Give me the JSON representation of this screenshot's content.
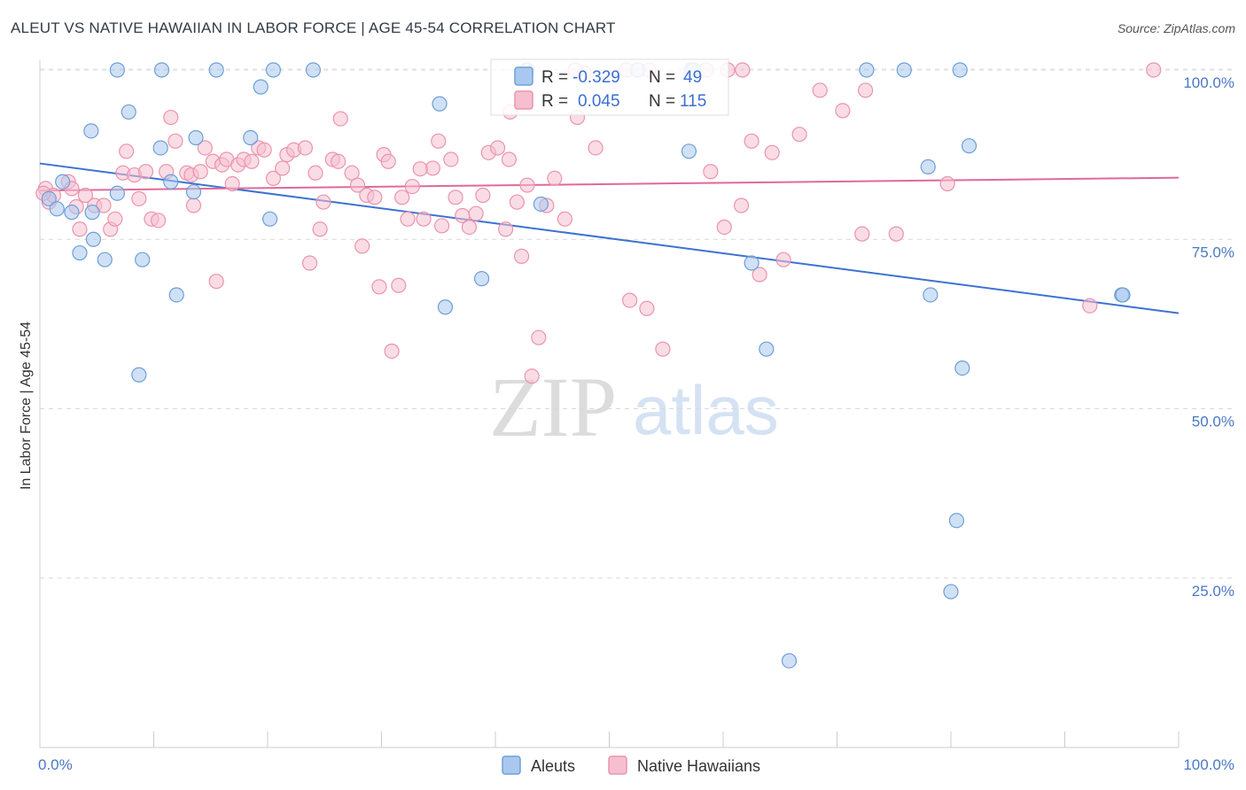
{
  "title": "ALEUT VS NATIVE HAWAIIAN IN LABOR FORCE | AGE 45-54 CORRELATION CHART",
  "source": "Source: ZipAtlas.com",
  "watermark": {
    "zip": "ZIP",
    "atlas": "atlas"
  },
  "colors": {
    "aleut_fill": "#aac8ef",
    "aleut_stroke": "#6e9fd8",
    "aleut_line": "#3d72d1",
    "hawaiian_fill": "#f6bfd0",
    "hawaiian_stroke": "#eb93af",
    "hawaiian_line": "#e0699a",
    "grid": "#d8d8d8",
    "tick_text": "#4a78c4"
  },
  "legend": {
    "row1": {
      "r_label": "R = ",
      "r_value": "-0.329",
      "n_label": "N = ",
      "n_value": "49"
    },
    "row2": {
      "r_label": "R = ",
      "r_value": "0.045",
      "n_label": "N = ",
      "n_value": "115"
    }
  },
  "bottom_legend": {
    "aleut": "Aleuts",
    "hawaiian": "Native Hawaiians"
  },
  "chart_data": {
    "type": "scatter",
    "title": "ALEUT VS NATIVE HAWAIIAN IN LABOR FORCE | AGE 45-54 CORRELATION CHART",
    "xlabel": "",
    "ylabel": "In Labor Force | Age 45-54",
    "xlim": [
      0,
      100
    ],
    "ylim": [
      0,
      103
    ],
    "x_tick_labels": [
      "0.0%",
      "100.0%"
    ],
    "y_ticks": [
      25,
      50,
      75,
      100
    ],
    "y_tick_labels": [
      "25.0%",
      "50.0%",
      "75.0%",
      "100.0%"
    ],
    "series": [
      {
        "name": "Aleuts",
        "r": -0.329,
        "n": 49,
        "trend": {
          "x": [
            0,
            100
          ],
          "y": [
            86.2,
            64.1
          ]
        },
        "points": [
          [
            0.8,
            81
          ],
          [
            1.5,
            79.5
          ],
          [
            2,
            83.5
          ],
          [
            2.8,
            79
          ],
          [
            4.6,
            79
          ],
          [
            4.7,
            75
          ],
          [
            3.5,
            73
          ],
          [
            5.7,
            72
          ],
          [
            9,
            72
          ],
          [
            8.7,
            55
          ],
          [
            4.5,
            91
          ],
          [
            7.8,
            93.8
          ],
          [
            6.8,
            81.8
          ],
          [
            10.6,
            88.5
          ],
          [
            11.5,
            83.5
          ],
          [
            12,
            66.8
          ],
          [
            13.5,
            82
          ],
          [
            13.7,
            90
          ],
          [
            18.5,
            90
          ],
          [
            20.2,
            78
          ],
          [
            6.8,
            100
          ],
          [
            10.7,
            100
          ],
          [
            15.5,
            100
          ],
          [
            20.5,
            100
          ],
          [
            24,
            100
          ],
          [
            19.4,
            97.5
          ],
          [
            35.1,
            95
          ],
          [
            35.6,
            65
          ],
          [
            38.8,
            69.2
          ],
          [
            44,
            80.2
          ],
          [
            42.8,
            100
          ],
          [
            57.2,
            100
          ],
          [
            52.5,
            100
          ],
          [
            57,
            88
          ],
          [
            57.4,
            100
          ],
          [
            63.8,
            58.8
          ],
          [
            78,
            85.7
          ],
          [
            78.2,
            66.8
          ],
          [
            80.5,
            33.5
          ],
          [
            81.6,
            88.8
          ],
          [
            81,
            56
          ],
          [
            80,
            23
          ],
          [
            65.8,
            12.8
          ],
          [
            62.5,
            71.5
          ],
          [
            80.8,
            100
          ],
          [
            72.6,
            100
          ],
          [
            75.9,
            100
          ],
          [
            95,
            66.8
          ],
          [
            95.1,
            66.8
          ]
        ]
      },
      {
        "name": "Native Hawaiians",
        "r": 0.045,
        "n": 115,
        "trend": {
          "x": [
            0,
            100
          ],
          "y": [
            82.2,
            84.1
          ]
        },
        "points": [
          [
            0.5,
            82.5
          ],
          [
            0.8,
            80.5
          ],
          [
            1.2,
            81.5
          ],
          [
            2.5,
            83.5
          ],
          [
            2.8,
            82.5
          ],
          [
            3.2,
            79.8
          ],
          [
            3.5,
            76.5
          ],
          [
            4,
            81.5
          ],
          [
            4.8,
            80
          ],
          [
            5.6,
            80
          ],
          [
            6.2,
            76.5
          ],
          [
            6.6,
            78
          ],
          [
            7.3,
            84.8
          ],
          [
            7.6,
            88
          ],
          [
            8.3,
            84.5
          ],
          [
            8.7,
            81
          ],
          [
            9.3,
            85
          ],
          [
            9.8,
            78
          ],
          [
            10.4,
            77.8
          ],
          [
            11.1,
            85
          ],
          [
            11.5,
            93
          ],
          [
            11.9,
            89.5
          ],
          [
            12.9,
            84.8
          ],
          [
            13.3,
            84.5
          ],
          [
            13.5,
            80
          ],
          [
            14.1,
            85
          ],
          [
            14.5,
            88.5
          ],
          [
            15.2,
            86.5
          ],
          [
            15.5,
            68.8
          ],
          [
            16,
            86
          ],
          [
            16.4,
            86.8
          ],
          [
            16.9,
            83.2
          ],
          [
            17.4,
            86
          ],
          [
            17.9,
            86.8
          ],
          [
            18.6,
            86.5
          ],
          [
            19.2,
            88.5
          ],
          [
            19.7,
            88.2
          ],
          [
            20.5,
            84
          ],
          [
            21.3,
            85.5
          ],
          [
            21.7,
            87.5
          ],
          [
            22.3,
            88.2
          ],
          [
            23.3,
            88.5
          ],
          [
            23.7,
            71.5
          ],
          [
            24.2,
            84.8
          ],
          [
            24.6,
            76.5
          ],
          [
            24.9,
            80.5
          ],
          [
            25.7,
            86.8
          ],
          [
            26.2,
            86.5
          ],
          [
            26.4,
            92.8
          ],
          [
            27.4,
            84.8
          ],
          [
            27.9,
            83
          ],
          [
            28.3,
            74
          ],
          [
            28.7,
            81.5
          ],
          [
            29.4,
            81.2
          ],
          [
            29.8,
            68
          ],
          [
            30.2,
            87.5
          ],
          [
            30.6,
            86.5
          ],
          [
            30.9,
            58.5
          ],
          [
            31.5,
            68.2
          ],
          [
            31.8,
            81.2
          ],
          [
            32.3,
            78
          ],
          [
            32.7,
            82.8
          ],
          [
            33.7,
            78
          ],
          [
            34.5,
            85.5
          ],
          [
            35,
            89.5
          ],
          [
            35.3,
            77
          ],
          [
            36.1,
            86.8
          ],
          [
            36.5,
            81.2
          ],
          [
            37.1,
            78.5
          ],
          [
            37.7,
            76.8
          ],
          [
            38.3,
            78.8
          ],
          [
            38.9,
            81.5
          ],
          [
            39.4,
            87.8
          ],
          [
            40.2,
            88.5
          ],
          [
            40.9,
            76.5
          ],
          [
            41.2,
            86.8
          ],
          [
            41.9,
            80.5
          ],
          [
            42.3,
            72.5
          ],
          [
            42.8,
            83
          ],
          [
            43.2,
            54.8
          ],
          [
            43.8,
            60.5
          ],
          [
            44.5,
            80
          ],
          [
            45.2,
            84
          ],
          [
            46.1,
            78
          ],
          [
            47.2,
            93
          ],
          [
            47.8,
            99.5
          ],
          [
            48.8,
            88.5
          ],
          [
            51.8,
            66
          ],
          [
            53.3,
            64.8
          ],
          [
            54.7,
            58.8
          ],
          [
            58.9,
            85
          ],
          [
            60.1,
            76.8
          ],
          [
            61.6,
            80
          ],
          [
            62.5,
            89.5
          ],
          [
            63.2,
            69.8
          ],
          [
            64.3,
            87.8
          ],
          [
            65.3,
            72
          ],
          [
            66.7,
            90.5
          ],
          [
            68.5,
            97
          ],
          [
            70.5,
            94
          ],
          [
            72.2,
            75.8
          ],
          [
            72.5,
            97
          ],
          [
            75.2,
            75.8
          ],
          [
            79.7,
            83.2
          ],
          [
            97.8,
            100
          ],
          [
            47,
            100
          ],
          [
            53.5,
            100
          ],
          [
            58.5,
            100
          ],
          [
            60.4,
            100
          ],
          [
            61.7,
            100
          ],
          [
            92.2,
            65.2
          ],
          [
            51.5,
            100
          ],
          [
            41.3,
            93.8
          ],
          [
            0.3,
            81.8
          ],
          [
            33.4,
            85.4
          ]
        ]
      }
    ]
  }
}
